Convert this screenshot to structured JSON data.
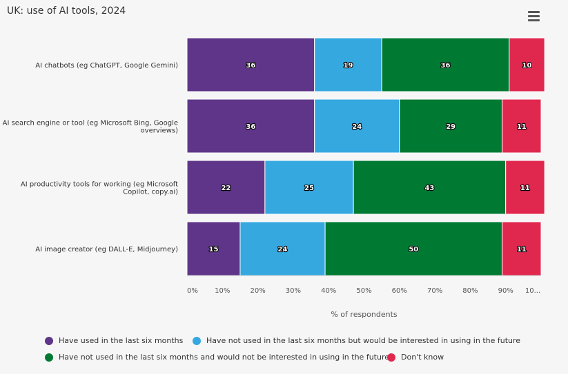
{
  "chart_data": {
    "type": "bar",
    "orientation": "horizontal",
    "stacked": true,
    "title": "UK: use of AI tools, 2024",
    "xlabel": "% of respondents",
    "categories": [
      [
        "AI chatbots (eg ChatGPT, Google Gemini)"
      ],
      [
        "AI search engine or tool (eg Microsoft Bing, Google",
        "overviews)"
      ],
      [
        "AI productivity tools for working (eg Microsoft",
        "Copilot, copy.ai)"
      ],
      [
        "AI image creator (eg DALL-E, Midjourney)"
      ]
    ],
    "series": [
      {
        "name": "Have used in the last six months",
        "color": "#5f3589",
        "values": [
          36,
          36,
          22,
          15
        ]
      },
      {
        "name": "Have not used in the last six months but would be interested in using in the future",
        "color": "#35a8e0",
        "values": [
          19,
          24,
          25,
          24
        ]
      },
      {
        "name": "Have not used in the last six months and would not be interested in using in the future",
        "color": "#007a33",
        "values": [
          36,
          29,
          43,
          50
        ]
      },
      {
        "name": "Don't know",
        "color": "#e0284f",
        "values": [
          10,
          11,
          11,
          11
        ]
      }
    ],
    "xlim": [
      0,
      100
    ],
    "ticks": [
      "0%",
      "10%",
      "20%",
      "30%",
      "40%",
      "50%",
      "60%",
      "70%",
      "80%",
      "90%",
      "10..."
    ],
    "legend_position": "bottom",
    "grid": false
  },
  "ui": {
    "menu_icon": "hamburger-menu-icon"
  }
}
